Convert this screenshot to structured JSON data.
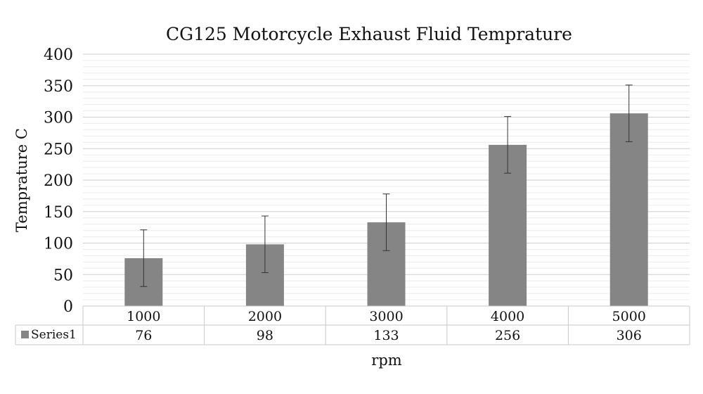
{
  "chart_data": {
    "type": "bar",
    "title": "CG125 Motorcycle Exhaust Fluid Temprature",
    "xlabel": "rpm",
    "ylabel": "Temprature C",
    "categories": [
      "1000",
      "2000",
      "3000",
      "4000",
      "5000"
    ],
    "series": [
      {
        "name": "Series1",
        "values": [
          76,
          98,
          133,
          256,
          306
        ],
        "error": [
          45,
          45,
          45,
          45,
          45
        ],
        "color": "#858585"
      }
    ],
    "ylim": [
      0,
      400
    ],
    "yticks": [
      "0",
      "50",
      "100",
      "150",
      "200",
      "250",
      "300",
      "350",
      "400"
    ],
    "grid": true,
    "data_table": true,
    "legend_placement": "data-table-left"
  }
}
